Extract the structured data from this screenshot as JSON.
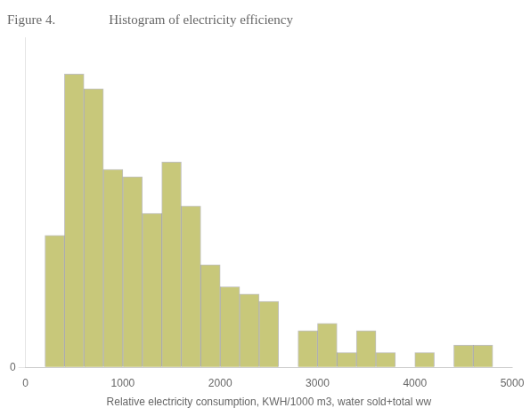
{
  "chart_data": {
    "type": "histogram",
    "title": "Figure 4.    Histogram of electricity efficiency",
    "xlabel": "Relative electricity consumption, KWH/1000 m3, water sold+total ww",
    "bins": [
      0,
      200,
      400,
      600,
      800,
      1000,
      1200,
      1400,
      1600,
      1800,
      2000,
      2200,
      2400,
      2600,
      2800,
      3000,
      3200,
      3400,
      3600,
      3800,
      4000,
      4200,
      4400,
      4600,
      4800
    ],
    "counts": [
      0,
      18,
      40,
      38,
      27,
      26,
      21,
      28,
      22,
      14,
      11,
      10,
      9,
      0,
      5,
      6,
      2,
      5,
      2,
      0,
      2,
      0,
      3,
      3
    ],
    "color": "#c8c87a",
    "xlim": [
      0,
      5000
    ],
    "xticks": [
      0,
      1000,
      2000,
      3000,
      4000,
      5000
    ],
    "ylim": [
      0,
      45
    ],
    "yticks": [
      0
    ],
    "grid": true
  }
}
